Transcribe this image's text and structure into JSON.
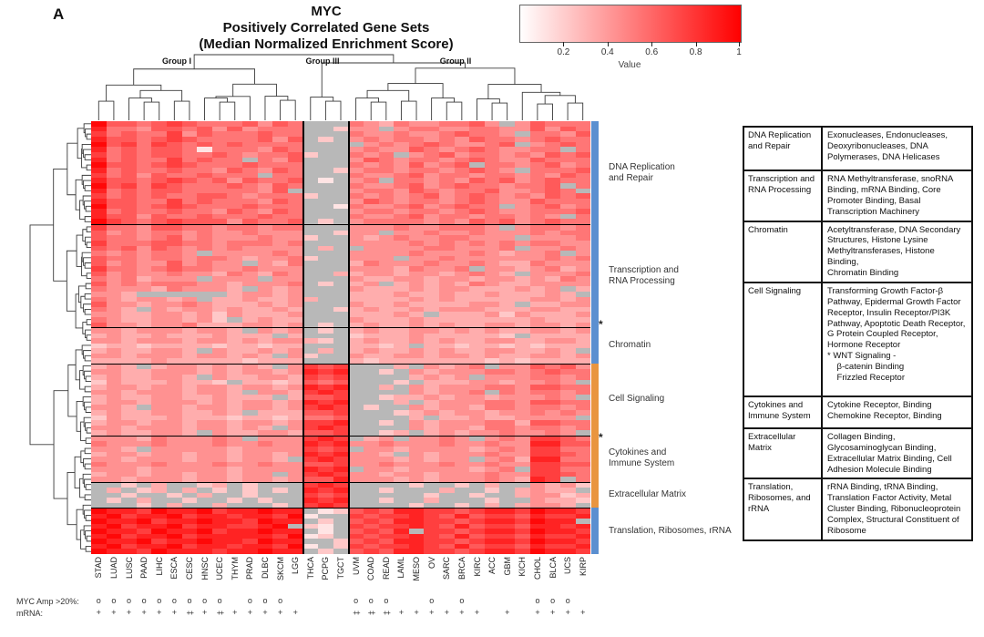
{
  "panel_label": "A",
  "title": {
    "line1": "MYC",
    "line2": "Positively Correlated Gene Sets",
    "line3": "(Median Normalized Enrichment Score)"
  },
  "legend": {
    "label": "Value",
    "ticks": [
      "0.2",
      "0.4",
      "0.6",
      "0.8",
      "1"
    ],
    "color_low": "#ffffff",
    "color_high": "#ff0000"
  },
  "groups": [
    {
      "label": "Group I"
    },
    {
      "label": "Group III"
    },
    {
      "label": "Group II"
    }
  ],
  "side_colors": {
    "blue": "#5b8fd0",
    "orange": "#e9953f"
  },
  "annotations": {
    "amp_label": "MYC Amp >20%:",
    "mrna_label": "mRNA:",
    "amp": [
      "o",
      "o",
      "o",
      "o",
      "o",
      "o",
      "o",
      "o",
      "o",
      "",
      "o",
      "o",
      "o",
      "",
      "",
      "",
      "",
      "o",
      "o",
      "o",
      "",
      "",
      "o",
      "",
      "o",
      "",
      "",
      "",
      "",
      "o",
      "o",
      "o",
      ""
    ],
    "mrna": [
      "+",
      "+",
      "+",
      "+",
      "+",
      "+",
      "++",
      "+",
      "++",
      "+",
      "+",
      "+",
      "+",
      "+",
      "",
      "",
      "",
      "++",
      "++",
      "++",
      "+",
      "+",
      "+",
      "+",
      "+",
      "+",
      "",
      "+",
      "",
      "+",
      "+",
      "+",
      "+"
    ]
  },
  "row_markers": [
    {
      "symbol": "*",
      "section_index": 1,
      "position": "last-row"
    },
    {
      "symbol": "*",
      "section_index": 4,
      "position": "first-row"
    }
  ],
  "chart_data": {
    "type": "heatmap",
    "title": "MYC Positively Correlated Gene Sets (Median Normalized Enrichment Score)",
    "value_label": "Value",
    "value_range": [
      0,
      1
    ],
    "na_color": "#b8b8b8",
    "encoding": "one char per column: '.' = missing (gray), digit 0-9 = enrichment score 0.0-1.0 (estimated from cell color)",
    "columns": [
      "STAD",
      "LUAD",
      "LUSC",
      "PAAD",
      "LIHC",
      "ESCA",
      "CESC",
      "HNSC",
      "UCEC",
      "THYM",
      "PRAD",
      "DLBC",
      "SKCM",
      "LGG",
      "THCA",
      "PCPG",
      "TGCT",
      "UVM",
      "COAD",
      "READ",
      "LAML",
      "MESO",
      "OV",
      "SARC",
      "BRCA",
      "KIRC",
      "ACC",
      "GBM",
      "KICH",
      "CHOL",
      "BLCA",
      "UCS",
      "KIRP"
    ],
    "column_group_sizes": [
      14,
      3,
      16
    ],
    "sections": [
      {
        "name": "DNA Replication\nand Repair",
        "side": "blue",
        "rows": [
          "96656765556465...5435445564.46555",
          "85546656464555..244.4554455446465",
          "75655746555655...54454456554.5546",
          "86656765555646.2.4545545465545655",
          "96757656565555....4545654456.4565",
          "85656651555465...45446545654455.5",
          "756566556545562..545.456455454656",
          "8565575655.546...4654554565446555",
          "96656765556555...54546456.5545645",
          "85655655465465..245545545654.5556",
          "75646556555.55...5445645545545465",
          "86656765646556.1.45.5545465645655",
          "96757655565465...54456456554556.5",
          "8565665555546....455465455644565.",
          "756565566545552..5454564565454656",
          "86655756555465...4654554565446555",
          "96656765556555..15445645655.45645",
          "85655655465465...4554554565445556",
          "86646556555655...54456455455454.5",
          "97656766646556.2.4555545465645655"
        ]
      },
      {
        "name": "Transcription and\nRNA Processing",
        "side": "blue",
        "rows": [
          "75546655455455...4445445554.45545",
          "64545545445444..244.4454454445455",
          "655456454445442..43454455444.4445",
          "75556655455545...4444545454545544",
          "65646545454444.3..4444554445.4454",
          "5454554.444454...44445444543445.4",
          "655455455434452..444.445444444545",
          "6454464544.435...3544454454335444",
          "75545655445444...44435445.4434534",
          "64544544354354..334434434543.4445",
          "5453444.444.44...4334434434434354",
          "64545554434445.2.34.3434354334444",
          "5444354443.434...43334344333434.3",
          "443......34434...333433433433343.",
          "5434434.3343343..3333434333334434",
          "64434454333434...43343333443.3344",
          "543.4344343343..23433434443334433",
          "44334434243334...33343.3334243334",
          "543344342.3433...4333433333334333",
          "64434453334434.2.3433434334434434"
        ]
      },
      {
        "name": "Chromatin",
        "side": "blue",
        "rows": [
          "4434443443.434.2.3433443434334434",
          "343343334333.3...23334333332.3333",
          "4434443443434432.3433434334433443",
          "23323333233233...3323.33233232333",
          "3433443.433434.3.343343433443343.",
          "443444344343.42..4334434434334434",
          "33334333332333...3233333332323333"
        ]
      },
      {
        "name": "Cell Signaling",
        "side": "orange",
        "rows": [
          "343.34434343.4767...3.4345.446564",
          "44334443434434878..2.434445545655",
          "3433443.433443767....3434.4445545",
          "243334332.3323656...2.3334434454.",
          "34434434434434878..3.434445546655",
          "4434443443.443787....43445.545545",
          "343344334333.3667..2334344344454.",
          "34434443434434878...3.34445546655",
          "443.4434434434787.2..434435545545",
          "3433443343.333667...2343443445454",
          "24333433323323556....3.334334444.",
          "34434434434434778..2.434445536655",
          "443444344343.4787....434435545545",
          "3433443.433443667..23.3434454454."
        ]
      },
      {
        "name": "Cytokines and\nImmune System",
        "side": "orange",
        "rows": [
          "4443544454.444787.34.4454.4547765",
          "544454445445448784454445445448866",
          "443.4444434444767.443444434547755",
          "34434434434434878443.434445447765",
          "4434443443443.78744434344.4538855",
          "544454445445446674454445445447766",
          "44434444434444878.4434444345.7755",
          "344344344344.47874434434445447765",
          "4434443443443466844434344454387.5"
        ]
      },
      {
        "name": "Extracellular Matrix",
        "side": "orange",
        "rows": [
          "..2.3..23.2...787....2..2.3..4342",
          ".3.23.3.2.2.2.878..2...3..2.3433.",
          "..2..2.3..2...767.....2..2..34423",
          ".2.3..2..2.2..878..2..3...2..4332",
          "...2.3..3...2.787....2..2.3.3443."
        ]
      },
      {
        "name": "Translation, Ribosomes, rRNA",
        "side": "blue",
        "rows": [
          "98879889788988.126768877678879887",
          "897889788788791..7677876867768778",
          "98897889887988.2.676887767887988.",
          "8978897887789.21.7677876867768878",
          "98879889788988.1.6768.77678879887",
          "8978897888887912.7677876867768778",
          "98897889887988..26768877678879887",
          "897889788788791.27677876867768778",
          "98879888788988.2.6768877678879887"
        ]
      }
    ]
  },
  "table": {
    "rows": [
      {
        "term": "DNA Replication and Repair",
        "desc": "Exonucleases, Endonucleases, Deoxyribonucleases, DNA Polymerases, DNA Helicases"
      },
      {
        "term": "Transcription and RNA Processing",
        "desc": "RNA Methyltransferase, snoRNA Binding, mRNA Binding, Core Promoter Binding, Basal Transcription Machinery"
      },
      {
        "term": "Chromatin",
        "desc": "Acetyltransferase, DNA Secondary Structures, Histone Lysine Methyltransferases, Histone Binding,\nChromatin Binding"
      },
      {
        "term": "Cell Signaling",
        "desc": "Transforming Growth Factor-β Pathway, Epidermal Growth Factor Receptor, Insulin Receptor/PI3K Pathway, Apoptotic Death Receptor, G Protein Coupled Receptor, Hormone Receptor\n* WNT Signaling -\n    β-catenin Binding\n    Frizzled Receptor"
      },
      {
        "term": "Cytokines and Immune System",
        "desc": "Cytokine Receptor, Binding\nChemokine Receptor, Binding"
      },
      {
        "term": "Extracellular Matrix",
        "desc": "Collagen Binding, Glycosaminoglycan Binding, Extracellular Matrix Binding, Cell Adhesion Molecule Binding"
      },
      {
        "term": "Translation, Ribosomes, and rRNA",
        "desc": "rRNA Binding, tRNA Binding, Translation Factor Activity, Metal Cluster Binding, Ribonucleoprotein Complex, Structural Constituent of Ribosome"
      }
    ]
  }
}
